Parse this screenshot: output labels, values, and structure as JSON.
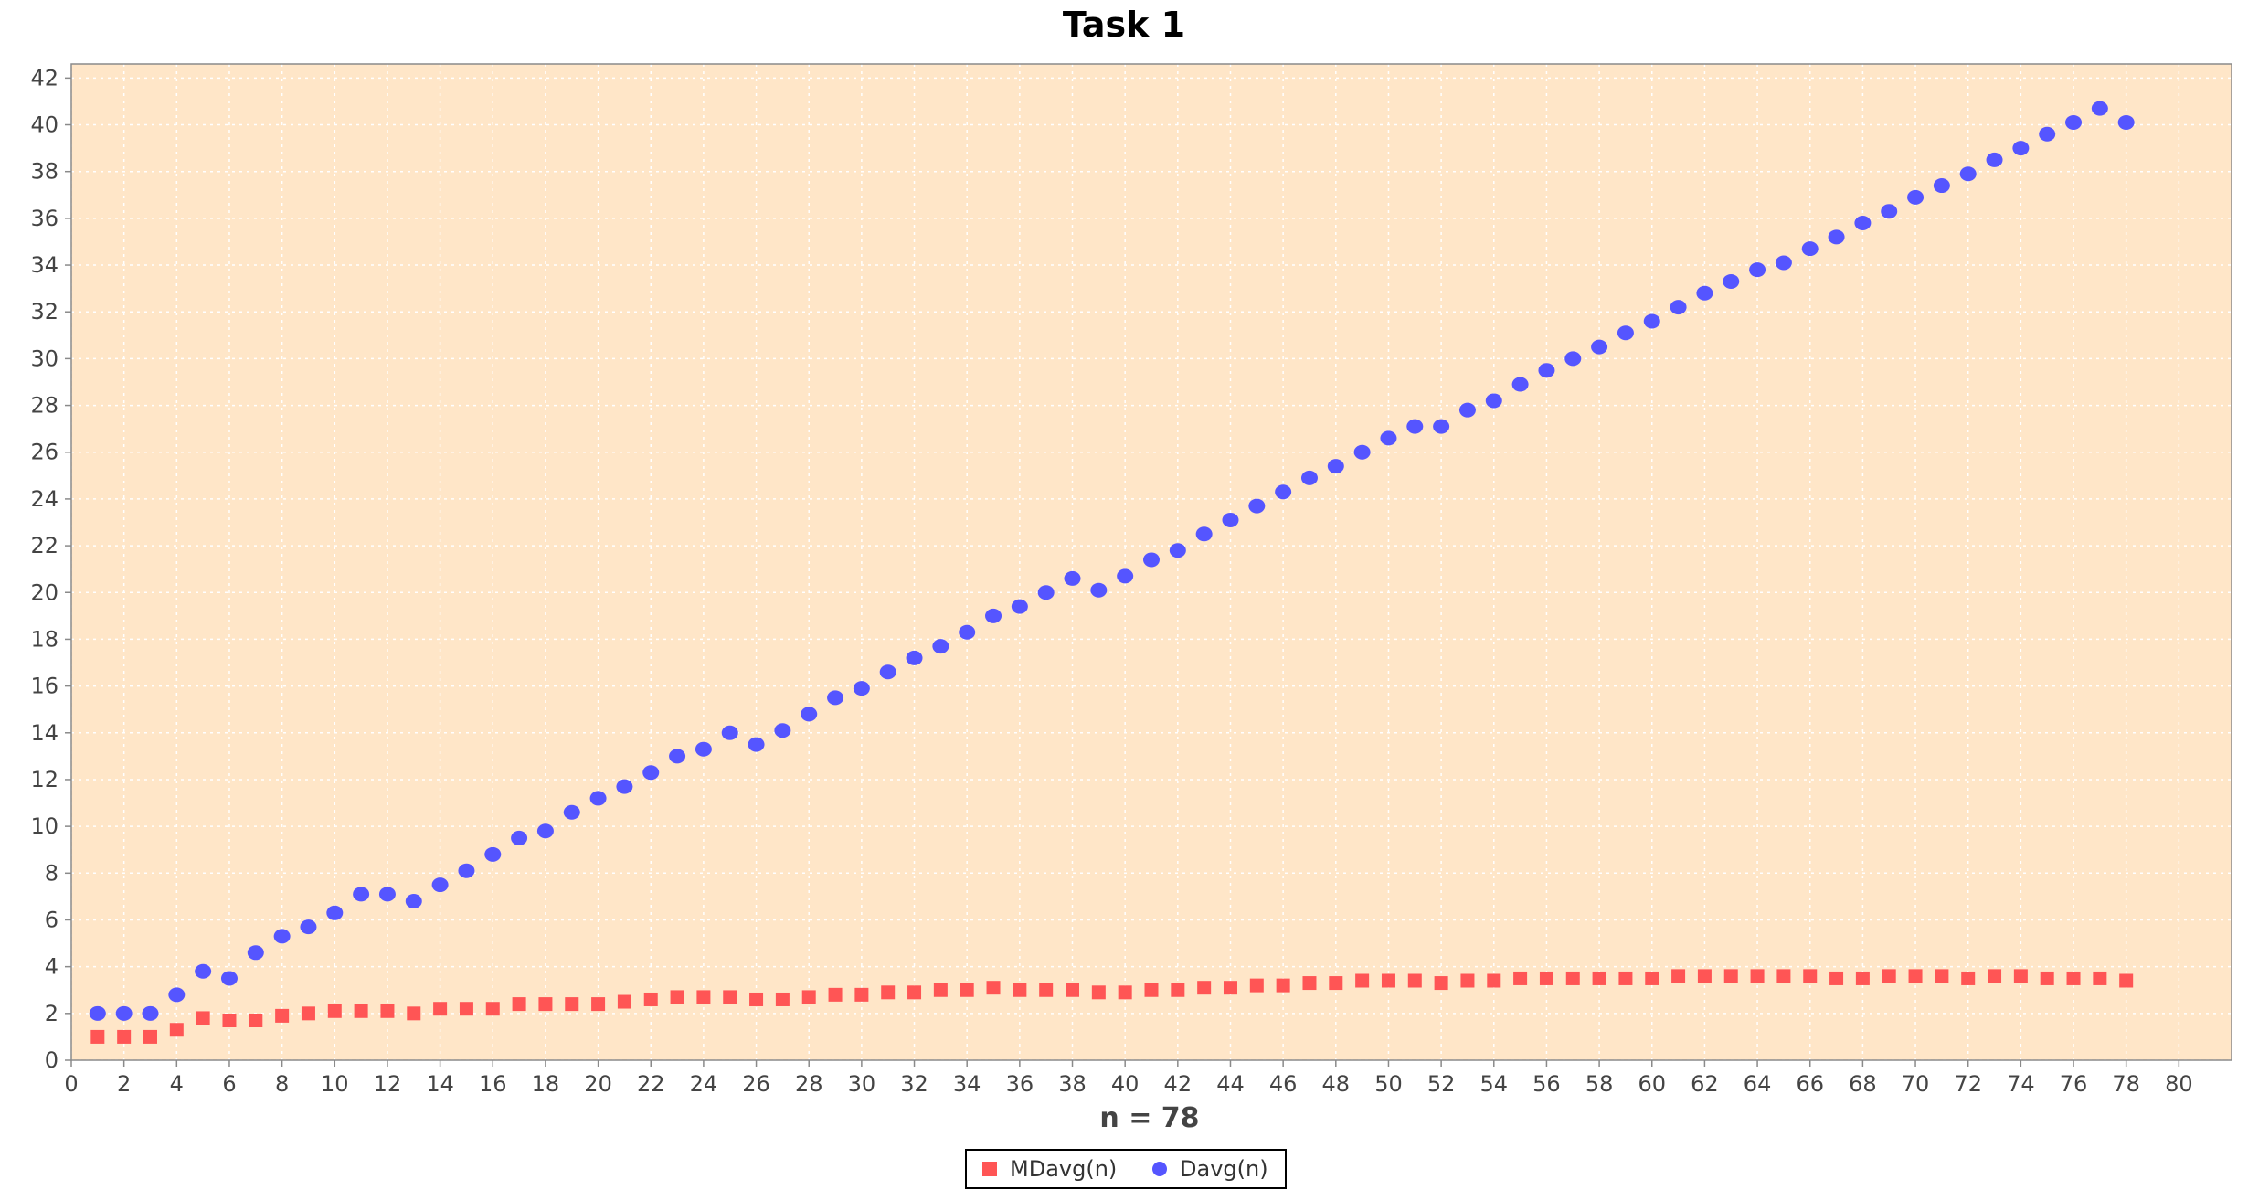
{
  "chart_data": {
    "type": "scatter",
    "title": "Task 1",
    "xlabel": "n = 78",
    "ylabel": "",
    "xlim": [
      0,
      82
    ],
    "ylim": [
      0,
      42.6
    ],
    "x_ticks": [
      0,
      2,
      4,
      6,
      8,
      10,
      12,
      14,
      16,
      18,
      20,
      22,
      24,
      26,
      28,
      30,
      32,
      34,
      36,
      38,
      40,
      42,
      44,
      46,
      48,
      50,
      52,
      54,
      56,
      58,
      60,
      62,
      64,
      66,
      68,
      70,
      72,
      74,
      76,
      78,
      80
    ],
    "y_ticks": [
      0,
      2,
      4,
      6,
      8,
      10,
      12,
      14,
      16,
      18,
      20,
      22,
      24,
      26,
      28,
      30,
      32,
      34,
      36,
      38,
      40,
      42
    ],
    "grid": true,
    "legend_position": "bottom-center",
    "plot_background": "#FFE6C8",
    "x": [
      1,
      2,
      3,
      4,
      5,
      6,
      7,
      8,
      9,
      10,
      11,
      12,
      13,
      14,
      15,
      16,
      17,
      18,
      19,
      20,
      21,
      22,
      23,
      24,
      25,
      26,
      27,
      28,
      29,
      30,
      31,
      32,
      33,
      34,
      35,
      36,
      37,
      38,
      39,
      40,
      41,
      42,
      43,
      44,
      45,
      46,
      47,
      48,
      49,
      50,
      51,
      52,
      53,
      54,
      55,
      56,
      57,
      58,
      59,
      60,
      61,
      62,
      63,
      64,
      65,
      66,
      67,
      68,
      69,
      70,
      71,
      72,
      73,
      74,
      75,
      76,
      77,
      78
    ],
    "series": [
      {
        "name": "MDavg(n)",
        "marker": "square",
        "color": "#FF5555",
        "values": [
          1.0,
          1.0,
          1.0,
          1.3,
          1.8,
          1.7,
          1.7,
          1.9,
          2.0,
          2.1,
          2.1,
          2.1,
          2.0,
          2.2,
          2.2,
          2.2,
          2.4,
          2.4,
          2.4,
          2.4,
          2.5,
          2.6,
          2.7,
          2.7,
          2.7,
          2.6,
          2.6,
          2.7,
          2.8,
          2.8,
          2.9,
          2.9,
          3.0,
          3.0,
          3.1,
          3.0,
          3.0,
          3.0,
          2.9,
          2.9,
          3.0,
          3.0,
          3.1,
          3.1,
          3.2,
          3.2,
          3.3,
          3.3,
          3.4,
          3.4,
          3.4,
          3.3,
          3.4,
          3.4,
          3.5,
          3.5,
          3.5,
          3.5,
          3.5,
          3.5,
          3.6,
          3.6,
          3.6,
          3.6,
          3.6,
          3.6,
          3.5,
          3.5,
          3.6,
          3.6,
          3.6,
          3.5,
          3.6,
          3.6,
          3.5,
          3.5,
          3.5,
          3.4
        ]
      },
      {
        "name": "Davg(n)",
        "marker": "circle",
        "color": "#5555FF",
        "values": [
          2.0,
          2.0,
          2.0,
          2.8,
          3.8,
          3.5,
          4.6,
          5.3,
          5.7,
          6.3,
          7.1,
          7.1,
          6.8,
          7.5,
          8.1,
          8.8,
          9.5,
          9.8,
          10.6,
          11.2,
          11.7,
          12.3,
          13.0,
          13.3,
          14.0,
          13.5,
          14.1,
          14.8,
          15.5,
          15.9,
          16.6,
          17.2,
          17.7,
          18.3,
          19.0,
          19.4,
          20.0,
          20.6,
          20.1,
          20.7,
          21.4,
          21.8,
          22.5,
          23.1,
          23.7,
          24.3,
          24.9,
          25.4,
          26.0,
          26.6,
          27.1,
          27.1,
          27.8,
          28.2,
          28.9,
          29.5,
          30.0,
          30.5,
          31.1,
          31.6,
          32.2,
          32.8,
          33.3,
          33.8,
          34.1,
          34.7,
          35.2,
          35.8,
          36.3,
          36.9,
          37.4,
          37.9,
          38.5,
          39.0,
          39.6,
          40.1,
          40.7,
          40.1
        ]
      }
    ]
  }
}
